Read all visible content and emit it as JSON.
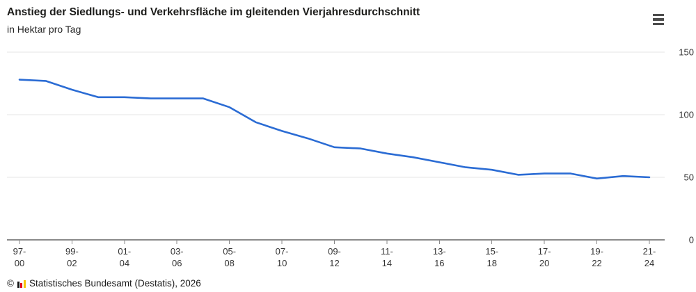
{
  "header": {
    "title": "Anstieg der Siedlungs- und Verkehrsfläche im gleitenden Vierjahresdurchschnitt",
    "subtitle": "in Hektar pro Tag",
    "menu_icon": "hamburger-menu-icon"
  },
  "footer": {
    "copyright": "©",
    "logo_icon": "destatis-bars-icon",
    "source": "Statistisches Bundesamt (Destatis), 2026"
  },
  "chart_data": {
    "type": "line",
    "title": "Anstieg der Siedlungs- und Verkehrsfläche im gleitenden Vierjahresdurchschnitt",
    "ylabel": "in Hektar pro Tag",
    "x_tick_labels": [
      "97-00",
      "99-02",
      "01-04",
      "03-06",
      "05-08",
      "07-10",
      "09-12",
      "11-14",
      "13-16",
      "15-18",
      "17-20",
      "19-22",
      "21-24"
    ],
    "series": [
      {
        "name": "Anstieg der Siedlungs- und Verkehrsfläche (gleitender Vierjahresdurchschnitt, ha/Tag)",
        "values": [
          128,
          127,
          120,
          114,
          114,
          113,
          113,
          113,
          106,
          94,
          87,
          81,
          74,
          73,
          69,
          66,
          62,
          58,
          56,
          52,
          53,
          53,
          49,
          51,
          50
        ]
      }
    ],
    "points_per_tick": 2,
    "y_ticks": [
      0,
      50,
      100,
      150
    ],
    "ylim": [
      0,
      150
    ],
    "grid": true,
    "y_axis_side": "right",
    "colors": {
      "line": "#2b6cd4",
      "grid": "#e6e6e6",
      "axis": "#8a8a8a",
      "tick_text": "#333333"
    }
  }
}
